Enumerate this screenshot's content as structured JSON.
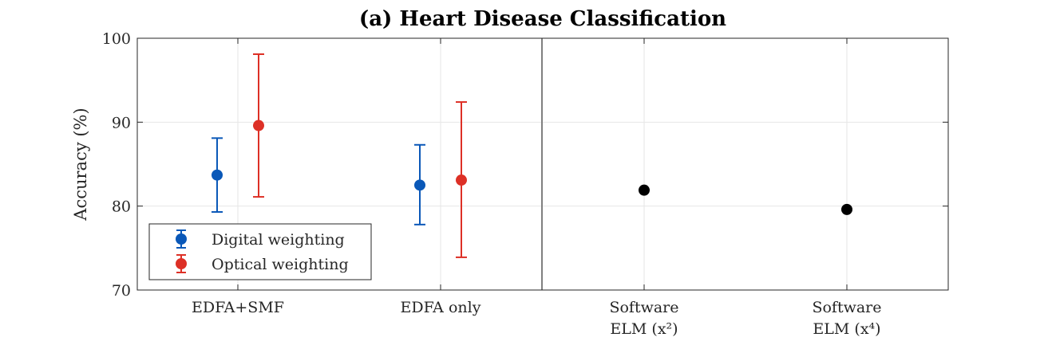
{
  "chart_data": {
    "type": "scatter",
    "title": "(a) Heart Disease Classification",
    "ylabel": "Accuracy (%)",
    "xlabel": "",
    "ylim": [
      70,
      100
    ],
    "yticks": [
      70,
      80,
      90,
      100
    ],
    "grid": true,
    "legend_position": "bottom-left",
    "categories": [
      [
        "EDFA+SMF"
      ],
      [
        "EDFA only"
      ],
      [
        "Software",
        "ELM (x²)"
      ],
      [
        "Software",
        "ELM (x⁴)"
      ]
    ],
    "series": [
      {
        "name": "Digital weighting",
        "color": "#0a58b8",
        "points": [
          {
            "category": 0,
            "value": 83.7,
            "low": 79.3,
            "high": 88.1
          },
          {
            "category": 1,
            "value": 82.5,
            "low": 77.8,
            "high": 87.3
          }
        ]
      },
      {
        "name": "Optical weighting",
        "color": "#dd3026",
        "points": [
          {
            "category": 0,
            "value": 89.6,
            "low": 81.1,
            "high": 98.1
          },
          {
            "category": 1,
            "value": 83.1,
            "low": 73.9,
            "high": 92.4
          }
        ]
      },
      {
        "name": "",
        "color": "#000000",
        "points": [
          {
            "category": 2,
            "value": 81.9
          },
          {
            "category": 3,
            "value": 79.6
          }
        ]
      }
    ]
  }
}
